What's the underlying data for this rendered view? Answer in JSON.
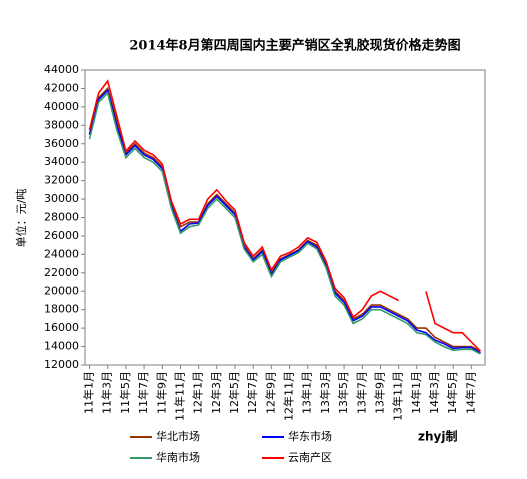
{
  "chart_data": {
    "type": "line",
    "title": "2014年8月第四周国内主要产销区全乳胶现货价格走势图",
    "y_label": "单位：元/吨",
    "annotation": "zhyj制",
    "categories": [
      "11年1月",
      null,
      "11年3月",
      null,
      "11年5月",
      null,
      "11年7月",
      null,
      "11年9月",
      null,
      "11年11月",
      null,
      "12年1月",
      null,
      "12年3月",
      null,
      "12年5月",
      null,
      "12年7月",
      null,
      "12年9月",
      null,
      "12年11月",
      null,
      "13年1月",
      null,
      "13年3月",
      null,
      "13年5月",
      null,
      "13年7月",
      null,
      "13年9月",
      null,
      "13年11月",
      null,
      "14年1月",
      null,
      "14年3月",
      null,
      "14年5月",
      null,
      "14年7月",
      null
    ],
    "series": [
      {
        "name": "华北市场",
        "color": "#993300",
        "values": [
          37000,
          41000,
          42000,
          38500,
          35000,
          36000,
          35000,
          34500,
          33500,
          29500,
          27000,
          27500,
          27500,
          29500,
          30500,
          29500,
          28500,
          25000,
          23500,
          24500,
          22000,
          23500,
          24000,
          24500,
          25500,
          25000,
          23000,
          20000,
          19000,
          17000,
          17500,
          18500,
          18500,
          18000,
          17500,
          17000,
          16000,
          16000,
          15000,
          14500,
          14000,
          14000,
          14000,
          13500
        ]
      },
      {
        "name": "华东市场",
        "color": "#0000ff",
        "values": [
          37000,
          40800,
          41800,
          38000,
          34800,
          35800,
          34800,
          34300,
          33300,
          29200,
          26500,
          27300,
          27400,
          29300,
          30300,
          29300,
          28300,
          24800,
          23400,
          24300,
          21800,
          23400,
          23900,
          24400,
          25400,
          24800,
          22800,
          19800,
          18800,
          16800,
          17300,
          18300,
          18300,
          17800,
          17300,
          16800,
          15800,
          15500,
          14700,
          14300,
          13800,
          13900,
          13900,
          13300
        ]
      },
      {
        "name": "华南市场",
        "color": "#339966",
        "values": [
          36500,
          40500,
          41500,
          37500,
          34500,
          35500,
          34500,
          34000,
          33000,
          29000,
          26300,
          27000,
          27200,
          29000,
          30000,
          29000,
          28000,
          24600,
          23200,
          24000,
          21600,
          23200,
          23700,
          24200,
          25200,
          24600,
          22600,
          19500,
          18500,
          16500,
          17000,
          18000,
          18000,
          17500,
          17000,
          16500,
          15500,
          15300,
          14500,
          14000,
          13600,
          13700,
          13700,
          13200
        ]
      },
      {
        "name": "云南产区",
        "color": "#ff0000",
        "values": [
          37500,
          41500,
          42800,
          39000,
          35200,
          36300,
          35300,
          34800,
          33800,
          29800,
          27300,
          27800,
          27800,
          30000,
          31000,
          29800,
          28800,
          25300,
          23800,
          24800,
          22300,
          23800,
          24200,
          24800,
          25800,
          25300,
          23300,
          20300,
          19300,
          17200,
          18000,
          19500,
          20000,
          19500,
          19000,
          null,
          null,
          20000,
          16500,
          16000,
          15500,
          15500,
          14500,
          13500
        ]
      }
    ],
    "ylim": [
      12000,
      44000
    ],
    "yticks": [
      12000,
      14000,
      16000,
      18000,
      20000,
      22000,
      24000,
      26000,
      28000,
      30000,
      32000,
      34000,
      36000,
      38000,
      40000,
      42000,
      44000
    ],
    "grid": false
  }
}
